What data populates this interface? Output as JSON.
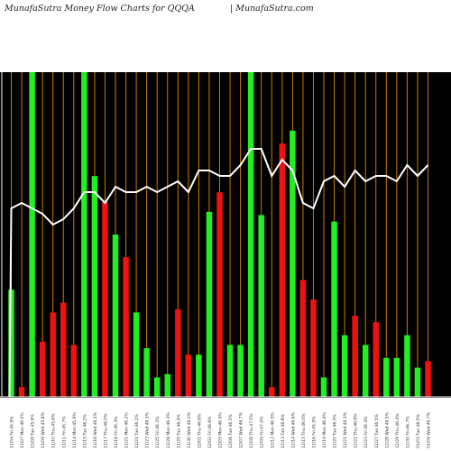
{
  "header": {
    "title": "MunafaSutra  Money Flow  Charts for QQQA",
    "site": "| MunafaSutra.com"
  },
  "colors": {
    "background": "#000000",
    "frame": "#ffffff",
    "grid": "#cc7a00",
    "up": "#22ee22",
    "down": "#ee1111",
    "price_line": "#ffffff"
  },
  "chart_data": {
    "type": "bar",
    "title": "MunafaSutra  Money Flow  Charts for QQQA",
    "grid": true,
    "ylim": [
      0,
      100
    ],
    "categories": [
      "11/04 Fri 45.9%",
      "11/07 Mon 46.0%",
      "11/08 Tue 45.9%",
      "11/09 Wed 45.8%",
      "11/10 Thu 45.6%",
      "11/11 Fri 45.7%",
      "11/14 Mon 45.9%",
      "11/15 Tue 46.2%",
      "11/16 Wed 46.2%",
      "11/17 Thu 46.0%",
      "11/18 Fri 46.3%",
      "11/21 Mon 46.2%",
      "11/22 Tue 46.2%",
      "11/23 Wed 46.3%",
      "11/25 Fri 46.2%",
      "11/28 Mon 46.3%",
      "11/29 Tue 46.4%",
      "11/30 Wed 46.2%",
      "12/01 Thu 46.6%",
      "12/02 Fri 46.6%",
      "12/05 Mon 46.5%",
      "12/06 Tue 46.5%",
      "12/07 Wed 46.7%",
      "12/08 Thu 47.0%",
      "12/09 Fri 47.0%",
      "12/12 Mon 46.5%",
      "12/13 Tue 46.8%",
      "12/14 Wed 46.6%",
      "12/15 Thu 46.0%",
      "12/16 Fri 45.9%",
      "12/19 Mon 46.4%",
      "12/20 Tue 46.5%",
      "12/21 Wed 46.3%",
      "12/22 Thu 46.6%",
      "12/23 Fri 46.4%",
      "12/27 Tue 46.5%",
      "12/28 Wed 46.5%",
      "12/29 Thu 46.4%",
      "12/30 Fri 46.7%",
      "01/03 Tue 46.5%",
      "01/04 Wed 46.7%"
    ],
    "series": [
      {
        "values": [
          33,
          3,
          100,
          17,
          26,
          29,
          16,
          100,
          68,
          60,
          50,
          43,
          26,
          15,
          6,
          7,
          27,
          13,
          13,
          57,
          63,
          16,
          16,
          100,
          56,
          3,
          78,
          82,
          36,
          30,
          6,
          54,
          19,
          25,
          16,
          23,
          12,
          12,
          19,
          9,
          11
        ],
        "directions": [
          "up",
          "down",
          "up",
          "down",
          "down",
          "down",
          "down",
          "up",
          "up",
          "down",
          "up",
          "down",
          "up",
          "up",
          "up",
          "up",
          "down",
          "down",
          "up",
          "up",
          "down",
          "up",
          "up",
          "up",
          "up",
          "down",
          "down",
          "up",
          "down",
          "down",
          "up",
          "up",
          "up",
          "down",
          "up",
          "down",
          "up",
          "up",
          "up",
          "up",
          "down"
        ]
      }
    ],
    "price_line": [
      45.9,
      46.0,
      45.9,
      45.8,
      45.6,
      45.7,
      45.9,
      46.2,
      46.2,
      46.0,
      46.3,
      46.2,
      46.2,
      46.3,
      46.2,
      46.3,
      46.4,
      46.2,
      46.6,
      46.6,
      46.5,
      46.5,
      46.7,
      47.0,
      47.0,
      46.5,
      46.8,
      46.6,
      46.0,
      45.9,
      46.4,
      46.5,
      46.3,
      46.6,
      46.4,
      46.5,
      46.5,
      46.4,
      46.7,
      46.5,
      46.7
    ]
  }
}
